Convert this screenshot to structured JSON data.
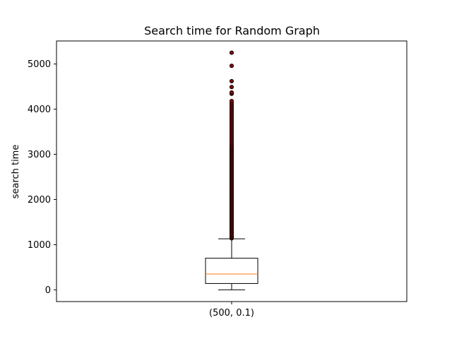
{
  "chart_data": {
    "type": "boxplot",
    "title": "Search time for Random Graph",
    "xlabel": "",
    "ylabel": "search time",
    "categories": [
      "(500, 0.1)"
    ],
    "ylim": [
      -260,
      5510
    ],
    "yticks": [
      0,
      1000,
      2000,
      3000,
      4000,
      5000
    ],
    "grid": false,
    "series": [
      {
        "category": "(500, 0.1)",
        "whisker_low": 0,
        "q1": 140,
        "median": 350,
        "q3": 700,
        "whisker_high": 1130,
        "outliers": [
          1140,
          1160,
          1185,
          1210,
          1240,
          1270,
          1300,
          1330,
          1360,
          1390,
          1420,
          1450,
          1480,
          1510,
          1540,
          1570,
          1600,
          1630,
          1660,
          1690,
          1720,
          1750,
          1780,
          1810,
          1840,
          1870,
          1900,
          1930,
          1960,
          1990,
          2020,
          2050,
          2080,
          2110,
          2140,
          2170,
          2200,
          2230,
          2260,
          2290,
          2320,
          2350,
          2380,
          2410,
          2440,
          2470,
          2500,
          2530,
          2560,
          2590,
          2620,
          2650,
          2680,
          2710,
          2740,
          2770,
          2800,
          2830,
          2860,
          2890,
          2920,
          2950,
          2980,
          3010,
          3040,
          3070,
          3100,
          3130,
          3160,
          3190,
          3220,
          3260,
          3300,
          3340,
          3380,
          3420,
          3460,
          3500,
          3540,
          3580,
          3620,
          3660,
          3700,
          3740,
          3780,
          3820,
          3860,
          3900,
          3940,
          3980,
          4020,
          4060,
          4100,
          4140,
          4180,
          4340,
          4370,
          4490,
          4620,
          4960,
          5250
        ]
      }
    ],
    "colors": {
      "box": "#000000",
      "median": "#ff7f0e",
      "outlier_fill": "#8b0000",
      "outlier_edge": "#000000"
    }
  }
}
